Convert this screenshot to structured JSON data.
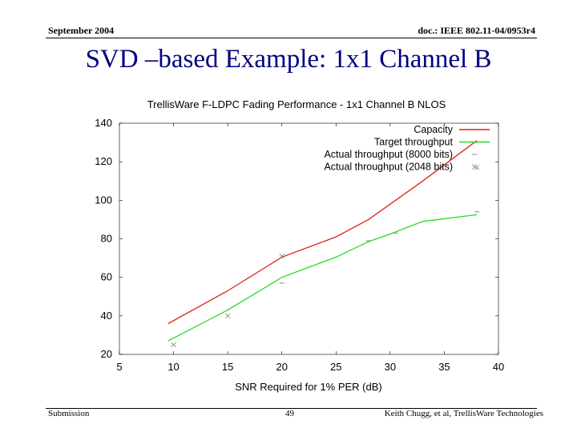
{
  "header": {
    "date": "September 2004",
    "doc_id": "doc.: IEEE 802.11-04/0953r4"
  },
  "slide": {
    "title": "SVD –based Example: 1x1 Channel B"
  },
  "footer": {
    "left": "Submission",
    "page": "49",
    "author": "Keith Chugg, et al, TrellisWare Technologies"
  },
  "colors": {
    "title": "#000080",
    "capacity": "#e0201a",
    "target": "#22dd22",
    "actual": "#888888"
  },
  "chart_data": {
    "type": "line",
    "title": "TrellisWare F-LDPC Fading Performance - 1x1 Channel B NLOS",
    "xlabel": "SNR Required for 1% PER (dB)",
    "ylabel": "",
    "xlim": [
      5,
      40
    ],
    "ylim": [
      20,
      140
    ],
    "xticks": [
      "5",
      "10",
      "15",
      "20",
      "25",
      "30",
      "35",
      "40"
    ],
    "yticks": [
      "20",
      "40",
      "60",
      "80",
      "100",
      "120",
      "140"
    ],
    "legend_position": "top-right",
    "grid": false,
    "series": [
      {
        "name": "Capacity",
        "style": "line",
        "points": [
          [
            9.5,
            36
          ],
          [
            15,
            53
          ],
          [
            20,
            70.5
          ],
          [
            25,
            81
          ],
          [
            28,
            90
          ],
          [
            30,
            98
          ],
          [
            33,
            110
          ],
          [
            38,
            131
          ]
        ]
      },
      {
        "name": "Target throughput",
        "style": "line",
        "points": [
          [
            9.5,
            27
          ],
          [
            15,
            43
          ],
          [
            20,
            60
          ],
          [
            25,
            70.5
          ],
          [
            28,
            78.5
          ],
          [
            30,
            82.5
          ],
          [
            33,
            89
          ],
          [
            38,
            92.5
          ]
        ]
      },
      {
        "name": "Actual throughput (8000 bits)",
        "style": "points",
        "points": [
          [
            20,
            57
          ],
          [
            28,
            79
          ],
          [
            38,
            94
          ],
          [
            30.5,
            83
          ]
        ]
      },
      {
        "name": "Actual throughput (2048 bits)",
        "style": "points",
        "points": [
          [
            10,
            25
          ],
          [
            15,
            40
          ],
          [
            20,
            71
          ],
          [
            38,
            117
          ]
        ]
      }
    ]
  }
}
